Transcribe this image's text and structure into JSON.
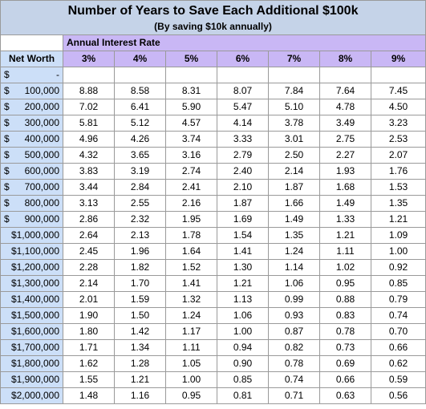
{
  "title": "Number of Years to Save Each Additional $100k",
  "subtitle": "(By saving $10k annually)",
  "rate_header": "Annual Interest Rate",
  "net_worth_header": "Net Worth",
  "rates": [
    "3%",
    "4%",
    "5%",
    "6%",
    "7%",
    "8%",
    "9%"
  ],
  "rows": [
    {
      "cur": "$",
      "amt": "-",
      "values": [
        "",
        "",
        "",
        "",
        "",
        "",
        ""
      ]
    },
    {
      "cur": "$",
      "amt": "100,000",
      "values": [
        "8.88",
        "8.58",
        "8.31",
        "8.07",
        "7.84",
        "7.64",
        "7.45"
      ]
    },
    {
      "cur": "$",
      "amt": "200,000",
      "values": [
        "7.02",
        "6.41",
        "5.90",
        "5.47",
        "5.10",
        "4.78",
        "4.50"
      ]
    },
    {
      "cur": "$",
      "amt": "300,000",
      "values": [
        "5.81",
        "5.12",
        "4.57",
        "4.14",
        "3.78",
        "3.49",
        "3.23"
      ]
    },
    {
      "cur": "$",
      "amt": "400,000",
      "values": [
        "4.96",
        "4.26",
        "3.74",
        "3.33",
        "3.01",
        "2.75",
        "2.53"
      ]
    },
    {
      "cur": "$",
      "amt": "500,000",
      "values": [
        "4.32",
        "3.65",
        "3.16",
        "2.79",
        "2.50",
        "2.27",
        "2.07"
      ]
    },
    {
      "cur": "$",
      "amt": "600,000",
      "values": [
        "3.83",
        "3.19",
        "2.74",
        "2.40",
        "2.14",
        "1.93",
        "1.76"
      ]
    },
    {
      "cur": "$",
      "amt": "700,000",
      "values": [
        "3.44",
        "2.84",
        "2.41",
        "2.10",
        "1.87",
        "1.68",
        "1.53"
      ]
    },
    {
      "cur": "$",
      "amt": "800,000",
      "values": [
        "3.13",
        "2.55",
        "2.16",
        "1.87",
        "1.66",
        "1.49",
        "1.35"
      ]
    },
    {
      "cur": "$",
      "amt": "900,000",
      "values": [
        "2.86",
        "2.32",
        "1.95",
        "1.69",
        "1.49",
        "1.33",
        "1.21"
      ]
    },
    {
      "cur": "",
      "amt": "$1,000,000",
      "values": [
        "2.64",
        "2.13",
        "1.78",
        "1.54",
        "1.35",
        "1.21",
        "1.09"
      ]
    },
    {
      "cur": "",
      "amt": "$1,100,000",
      "values": [
        "2.45",
        "1.96",
        "1.64",
        "1.41",
        "1.24",
        "1.11",
        "1.00"
      ]
    },
    {
      "cur": "",
      "amt": "$1,200,000",
      "values": [
        "2.28",
        "1.82",
        "1.52",
        "1.30",
        "1.14",
        "1.02",
        "0.92"
      ]
    },
    {
      "cur": "",
      "amt": "$1,300,000",
      "values": [
        "2.14",
        "1.70",
        "1.41",
        "1.21",
        "1.06",
        "0.95",
        "0.85"
      ]
    },
    {
      "cur": "",
      "amt": "$1,400,000",
      "values": [
        "2.01",
        "1.59",
        "1.32",
        "1.13",
        "0.99",
        "0.88",
        "0.79"
      ]
    },
    {
      "cur": "",
      "amt": "$1,500,000",
      "values": [
        "1.90",
        "1.50",
        "1.24",
        "1.06",
        "0.93",
        "0.83",
        "0.74"
      ]
    },
    {
      "cur": "",
      "amt": "$1,600,000",
      "values": [
        "1.80",
        "1.42",
        "1.17",
        "1.00",
        "0.87",
        "0.78",
        "0.70"
      ]
    },
    {
      "cur": "",
      "amt": "$1,700,000",
      "values": [
        "1.71",
        "1.34",
        "1.11",
        "0.94",
        "0.82",
        "0.73",
        "0.66"
      ]
    },
    {
      "cur": "",
      "amt": "$1,800,000",
      "values": [
        "1.62",
        "1.28",
        "1.05",
        "0.90",
        "0.78",
        "0.69",
        "0.62"
      ]
    },
    {
      "cur": "",
      "amt": "$1,900,000",
      "values": [
        "1.55",
        "1.21",
        "1.00",
        "0.85",
        "0.74",
        "0.66",
        "0.59"
      ]
    },
    {
      "cur": "",
      "amt": "$2,000,000",
      "values": [
        "1.48",
        "1.16",
        "0.95",
        "0.81",
        "0.71",
        "0.63",
        "0.56"
      ]
    }
  ],
  "colors": {
    "title_bg": "#c5d3e8",
    "rate_header_bg": "#c9b7f5",
    "net_worth_bg": "#ccdff8",
    "grid": "#9a9a9a"
  }
}
